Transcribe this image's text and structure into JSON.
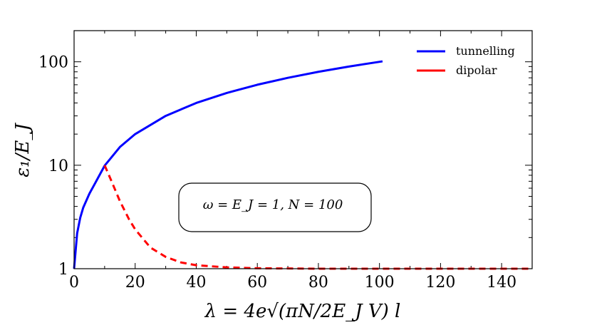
{
  "chart_data": {
    "type": "line",
    "xlabel": "λ = 4e√(πN/2E_J V) l",
    "ylabel": "ε₁/E_J",
    "xlim": [
      0,
      150
    ],
    "ylim": [
      1,
      200
    ],
    "yscale": "log",
    "xticks": [
      0,
      20,
      40,
      60,
      80,
      100,
      120,
      140
    ],
    "yticks": [
      1,
      10,
      100
    ],
    "legend_position": "top-right",
    "annotation": "ω = E_J = 1, N = 100",
    "series": [
      {
        "name": "tunnelling",
        "color": "#0000ff",
        "style": "solid",
        "x": [
          0,
          1,
          2,
          3,
          5,
          7,
          10,
          15,
          20,
          30,
          40,
          50,
          60,
          70,
          80,
          90,
          101
        ],
        "y": [
          1,
          2.2,
          3.1,
          3.9,
          5.3,
          6.8,
          9.9,
          15,
          20,
          30,
          40,
          50,
          60,
          70,
          80,
          90,
          101
        ]
      },
      {
        "name": "dipolar",
        "color": "#ff0000",
        "style": "dashed",
        "x": [
          10,
          12,
          15,
          18,
          20,
          25,
          30,
          35,
          40,
          50,
          60,
          70,
          80,
          100,
          120,
          150
        ],
        "y": [
          10,
          7.3,
          4.5,
          3.0,
          2.4,
          1.6,
          1.3,
          1.15,
          1.08,
          1.03,
          1.01,
          1.005,
          1.0,
          1.0,
          1.0,
          1.0
        ]
      }
    ]
  }
}
